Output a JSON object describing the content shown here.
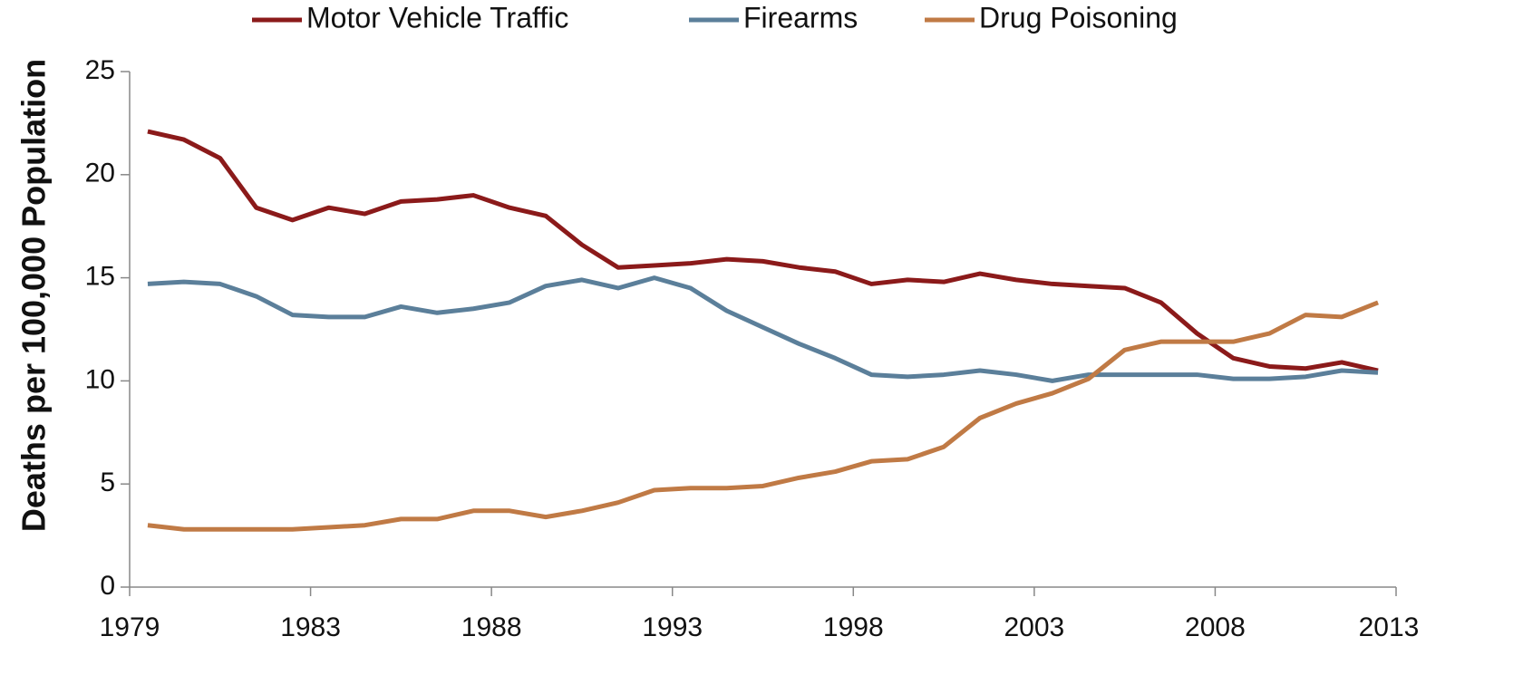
{
  "chart_data": {
    "type": "line",
    "y_label": "Deaths per 100,000 Population",
    "x": [
      1979,
      1980,
      1981,
      1982,
      1983,
      1984,
      1985,
      1986,
      1987,
      1988,
      1989,
      1990,
      1991,
      1992,
      1993,
      1994,
      1995,
      1996,
      1997,
      1998,
      1999,
      2000,
      2001,
      2002,
      2003,
      2004,
      2005,
      2006,
      2007,
      2008,
      2009,
      2010,
      2011,
      2012,
      2013
    ],
    "series": [
      {
        "name": "Motor Vehicle Traffic",
        "color": "#8b1a1a",
        "values": [
          22.1,
          21.7,
          20.8,
          18.4,
          17.8,
          18.4,
          18.1,
          18.7,
          18.8,
          19.0,
          18.4,
          18.0,
          16.6,
          15.5,
          15.6,
          15.7,
          15.9,
          15.8,
          15.5,
          15.3,
          14.7,
          14.9,
          14.8,
          15.2,
          14.9,
          14.7,
          14.6,
          14.5,
          13.8,
          12.3,
          11.1,
          10.7,
          10.6,
          10.9,
          10.5
        ]
      },
      {
        "name": "Firearms",
        "color": "#5b7f9a",
        "values": [
          14.7,
          14.8,
          14.7,
          14.1,
          13.2,
          13.1,
          13.1,
          13.6,
          13.3,
          13.5,
          13.8,
          14.6,
          14.9,
          14.5,
          15.0,
          14.5,
          13.4,
          12.6,
          11.8,
          11.1,
          10.3,
          10.2,
          10.3,
          10.5,
          10.3,
          10.0,
          10.3,
          10.3,
          10.3,
          10.3,
          10.1,
          10.1,
          10.2,
          10.5,
          10.4
        ]
      },
      {
        "name": "Drug Poisoning",
        "color": "#c07a45",
        "values": [
          3.0,
          2.8,
          2.8,
          2.8,
          2.8,
          2.9,
          3.0,
          3.3,
          3.3,
          3.7,
          3.7,
          3.4,
          3.7,
          4.1,
          4.7,
          4.8,
          4.8,
          4.9,
          5.3,
          5.6,
          6.1,
          6.2,
          6.8,
          8.2,
          8.9,
          9.4,
          10.1,
          11.5,
          11.9,
          11.9,
          11.9,
          12.3,
          13.2,
          13.1,
          13.8
        ]
      }
    ],
    "xlim": [
      1978.5,
      2013.5
    ],
    "xticks": [
      {
        "value": 1978.5,
        "label": "1979"
      },
      {
        "value": 1983.5,
        "label": "1983"
      },
      {
        "value": 1988.5,
        "label": "1988"
      },
      {
        "value": 1993.5,
        "label": "1993"
      },
      {
        "value": 1998.5,
        "label": "1998"
      },
      {
        "value": 2003.5,
        "label": "2003"
      },
      {
        "value": 2008.5,
        "label": "2008"
      },
      {
        "value": 2013.5,
        "label": "2013"
      }
    ],
    "ylim": [
      0,
      25
    ],
    "yticks": [
      0,
      5,
      10,
      15,
      20,
      25
    ],
    "legend": "top"
  }
}
